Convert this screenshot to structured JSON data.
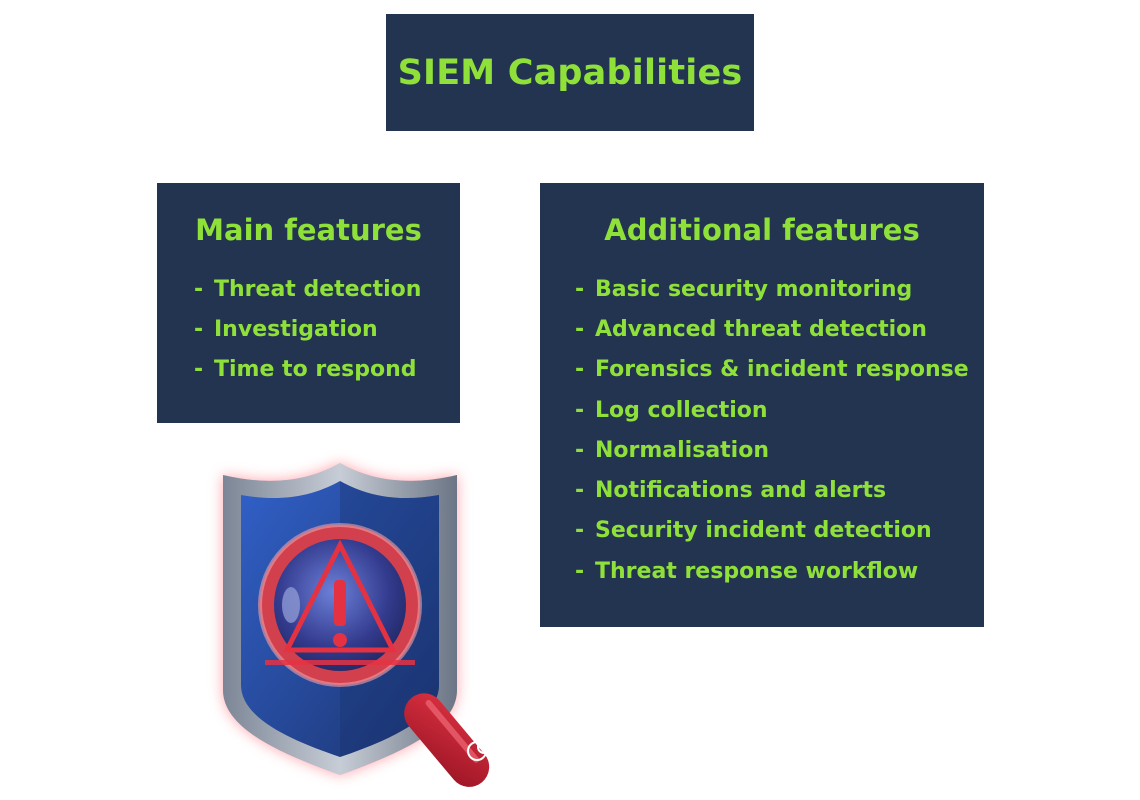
{
  "title": "SIEM Capabilities",
  "main_features": {
    "heading": "Main features",
    "items": [
      "Threat detection",
      "Investigation",
      "Time to respond"
    ]
  },
  "additional_features": {
    "heading": "Additional features",
    "items": [
      "Basic security monitoring",
      "Advanced threat detection",
      "Forensics & incident response",
      "Log collection",
      "Normalisation",
      "Notifications and alerts",
      "Security incident detection",
      "Threat response workflow"
    ]
  },
  "illustration": {
    "icon": "shield-magnifier-warning-icon"
  },
  "colors": {
    "panel": "#233451",
    "accent": "#8fe13a",
    "shield": "#2a4fa8",
    "magnifier": "#c72a3a"
  }
}
